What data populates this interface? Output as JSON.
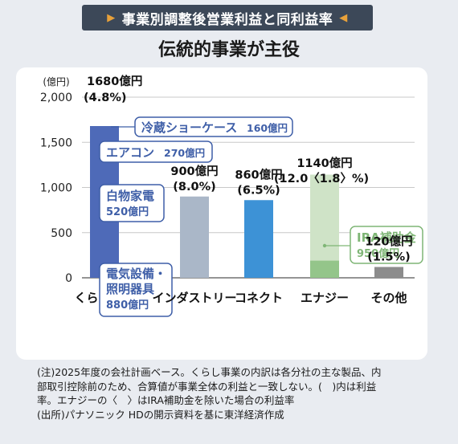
{
  "banner": {
    "title": "事業別調整後営業利益と同利益率",
    "left_marker": "▶",
    "right_marker": "◀"
  },
  "headline": "伝統的事業が主役",
  "chart_data": {
    "type": "bar",
    "unit_label": "(億円)",
    "ylim": [
      0,
      2000
    ],
    "yticks": [
      0,
      500,
      1000,
      1500,
      2000
    ],
    "ytick_labels": [
      "0",
      "500",
      "1,000",
      "1,500",
      "2,000"
    ],
    "grid": true,
    "categories": [
      "くらし事業",
      "インダストリー",
      "コネクト",
      "エナジー",
      "その他"
    ],
    "bars": [
      {
        "category": "くらし事業",
        "value": 1680,
        "value_label": "1680億円",
        "rate_label": "(4.8%)",
        "color": "#4e6ab8",
        "breakdown": [
          {
            "name": "電気設備・照明器具",
            "line1": "電気設備・",
            "line2": "照明器具",
            "amount": "880億円",
            "value": 880
          },
          {
            "name": "白物家電",
            "line1": "白物家電",
            "amount": "520億円",
            "value": 520
          },
          {
            "name": "エアコン",
            "line1": "エアコン",
            "amount": "270億円",
            "value": 270
          },
          {
            "name": "冷蔵ショーケース",
            "line1": "冷蔵ショーケース",
            "amount": "160億円",
            "value": 160
          }
        ]
      },
      {
        "category": "インダストリー",
        "value": 900,
        "value_label": "900億円",
        "rate_label": "(8.0%)",
        "color": "#aab7c8"
      },
      {
        "category": "コネクト",
        "value": 860,
        "value_label": "860億円",
        "rate_label": "(6.5%)",
        "color": "#3d92d6"
      },
      {
        "category": "エナジー",
        "value": 1140,
        "value_label": "1140億円",
        "rate_label": "(12.0〈1.8〉%)",
        "color": "#94c58a",
        "ira_subsidy": {
          "name": "IRA補助金",
          "amount": "950億円",
          "value": 950,
          "color": "#cfe3c7"
        }
      },
      {
        "category": "その他",
        "value": 120,
        "value_label": "120億円",
        "rate_label": "(1.5%)",
        "color": "#8c8c8c"
      }
    ]
  },
  "notes": [
    "(注)2025年度の会社計画ベース。くらし事業の内訳は各分社の主な製品、内",
    "部取引控除前のため、合算値が事業全体の利益と一致しない。(　)内は利益",
    "率。エナジーの〈　〉はIRA補助金を除いた場合の利益率",
    "(出所)パナソニック HDの開示資料を基に東洋経済作成"
  ],
  "colors": {
    "blue_label": "#3f5fa8",
    "green_label": "#7fb676",
    "banner_bg": "#3c4858"
  }
}
